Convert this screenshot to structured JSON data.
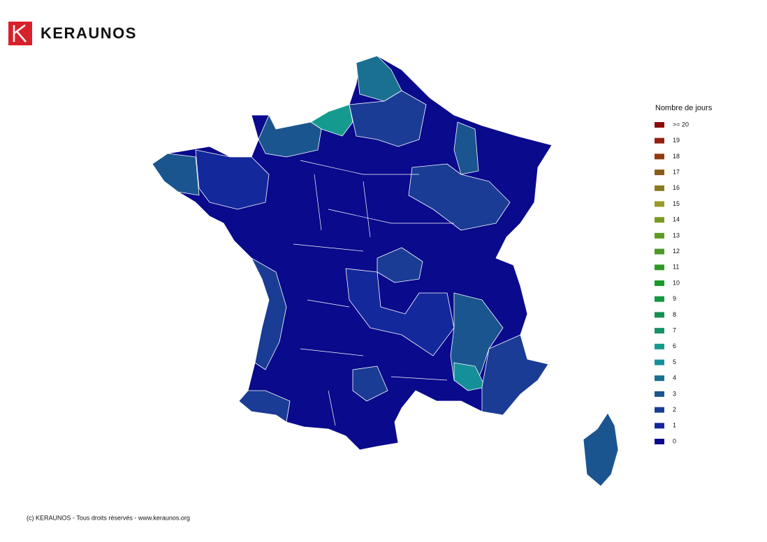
{
  "header": {
    "brand": "KERAUNOS"
  },
  "legend": {
    "title": "Nombre de jours",
    "items": [
      {
        "label": ">= 20",
        "color": "#8b0a0a"
      },
      {
        "label": "19",
        "color": "#962010"
      },
      {
        "label": "18",
        "color": "#8f3a10"
      },
      {
        "label": "17",
        "color": "#8a5a18"
      },
      {
        "label": "16",
        "color": "#8a7a20"
      },
      {
        "label": "15",
        "color": "#9a9a28"
      },
      {
        "label": "14",
        "color": "#7a9a25"
      },
      {
        "label": "13",
        "color": "#5f9a25"
      },
      {
        "label": "12",
        "color": "#4a9a25"
      },
      {
        "label": "11",
        "color": "#2f9a25"
      },
      {
        "label": "10",
        "color": "#1a9a2a"
      },
      {
        "label": "9",
        "color": "#15963f"
      },
      {
        "label": "8",
        "color": "#159050"
      },
      {
        "label": "7",
        "color": "#18906a"
      },
      {
        "label": "6",
        "color": "#159a8f"
      },
      {
        "label": "5",
        "color": "#15909a"
      },
      {
        "label": "4",
        "color": "#1a7090"
      },
      {
        "label": "3",
        "color": "#1a5590"
      },
      {
        "label": "2",
        "color": "#1a3c95"
      },
      {
        "label": "1",
        "color": "#13289a"
      },
      {
        "label": "0",
        "color": "#0a0a8c"
      }
    ]
  },
  "footer": {
    "text": "(c) KERAUNOS - Tous droits réservés - www.keraunos.org"
  }
}
